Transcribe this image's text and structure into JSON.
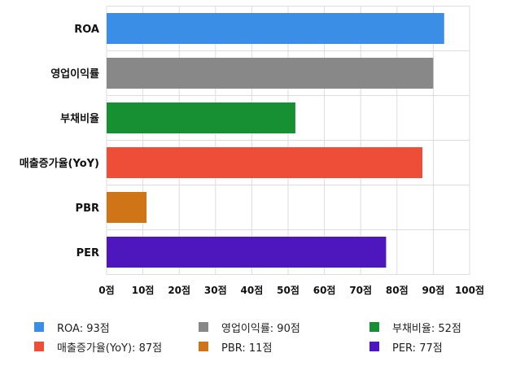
{
  "chart_data": {
    "type": "bar",
    "orientation": "horizontal",
    "categories": [
      "ROA",
      "영업이익률",
      "부채비율",
      "매출증가율(YoY)",
      "PBR",
      "PER"
    ],
    "values": [
      93,
      90,
      52,
      87,
      11,
      77
    ],
    "colors": [
      "#3a8ee6",
      "#888888",
      "#178f33",
      "#ee4e37",
      "#cf7518",
      "#4e17bd"
    ],
    "xlim": [
      0,
      100
    ],
    "xticks": [
      0,
      10,
      20,
      30,
      40,
      50,
      60,
      70,
      80,
      90,
      100
    ],
    "tick_suffix": "점",
    "grid": true,
    "legend_position": "bottom",
    "legend": [
      "ROA: 93점",
      "영업이익률: 90점",
      "부채비율: 52점",
      "매출증가율(YoY): 87점",
      "PBR: 11점",
      "PER: 77점"
    ]
  }
}
